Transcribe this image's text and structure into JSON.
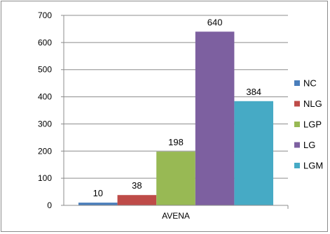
{
  "chart_data": {
    "type": "bar",
    "categories": [
      "AVENA"
    ],
    "series": [
      {
        "name": "NC",
        "values": [
          10
        ],
        "color": "#4a7ebb"
      },
      {
        "name": "NLG",
        "values": [
          38
        ],
        "color": "#be4b48"
      },
      {
        "name": "LGP",
        "values": [
          198
        ],
        "color": "#98b954"
      },
      {
        "name": "LG",
        "values": [
          640
        ],
        "color": "#7d60a0"
      },
      {
        "name": "LGM",
        "values": [
          384
        ],
        "color": "#46aac5"
      }
    ],
    "title": "",
    "xlabel": "",
    "ylabel": "",
    "ylim": [
      0,
      700
    ],
    "yticks": [
      0,
      100,
      200,
      300,
      400,
      500,
      600,
      700
    ],
    "grid": true,
    "legend": "right",
    "data_labels": true
  }
}
